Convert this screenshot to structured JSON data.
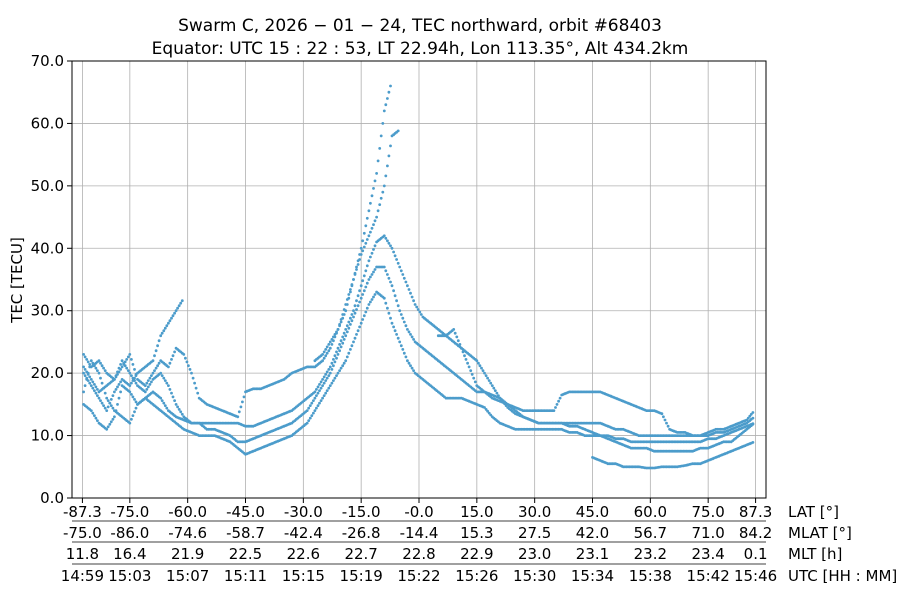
{
  "chart_data": {
    "type": "scatter",
    "title_line1": "Swarm C,  2026 − 01 − 24,  TEC northward,  orbit #68403",
    "title_line2": "Equator:  UTC 15 : 22 : 53,  LT 22.94h,  Lon 113.35°,  Alt 434.2km",
    "ylabel": "TEC [TECU]",
    "ylim": [
      0,
      70
    ],
    "yticks": [
      "0.0",
      "10.0",
      "20.0",
      "30.0",
      "40.0",
      "50.0",
      "60.0",
      "70.0"
    ],
    "xlim": [
      -90,
      90
    ],
    "grid": true,
    "series_color": "#4c9ccb",
    "lat_ticks": [
      "-87.3",
      "-75.0",
      "-60.0",
      "-45.0",
      "-30.0",
      "-15.0",
      "-0.0",
      "15.0",
      "30.0",
      "45.0",
      "60.0",
      "75.0",
      "87.3"
    ],
    "mlat_ticks": [
      "-75.0",
      "-86.0",
      "-74.6",
      "-58.7",
      "-42.4",
      "-26.8",
      "-14.4",
      "15.3",
      "27.5",
      "42.0",
      "56.7",
      "71.0",
      "84.2"
    ],
    "mlt_ticks": [
      "11.8",
      "16.4",
      "21.9",
      "22.5",
      "22.6",
      "22.7",
      "22.8",
      "22.9",
      "23.0",
      "23.1",
      "23.2",
      "23.4",
      "0.1"
    ],
    "utc_ticks": [
      "14:59",
      "15:03",
      "15:07",
      "15:11",
      "15:15",
      "15:19",
      "15:22",
      "15:26",
      "15:30",
      "15:34",
      "15:38",
      "15:42",
      "15:46"
    ],
    "row_labels": [
      "LAT [°]",
      "MLAT [°]",
      "MLT [h]",
      "UTC [HH : MM]"
    ],
    "tick_positions": [
      -87.3,
      -75,
      -60,
      -45,
      -30,
      -15,
      0,
      15,
      30,
      45,
      60,
      75,
      87.3
    ],
    "series": [
      {
        "x": [
          -87,
          -85,
          -83,
          -81,
          -79,
          -77,
          -75,
          -73,
          -71,
          -69,
          -67,
          -65,
          -63,
          -61,
          -59,
          -57,
          -55,
          -53,
          -51,
          -49,
          -47,
          -45,
          -43,
          -41,
          -39,
          -37,
          -35,
          -33,
          -31,
          -29,
          -27,
          -25,
          -23,
          -21,
          -19,
          -17,
          -15,
          -13,
          -11,
          -9,
          -7,
          -5,
          -3,
          -1,
          1,
          3,
          5,
          7,
          9,
          11,
          13,
          15,
          17,
          19,
          21,
          23,
          25,
          27,
          29,
          31,
          33,
          35,
          37,
          39,
          41,
          43,
          45,
          47,
          49,
          51,
          53,
          55,
          57,
          59,
          61,
          63,
          65,
          67,
          69,
          71,
          73,
          75,
          77,
          79,
          81,
          83,
          85,
          87
        ],
        "y": [
          17,
          22,
          20,
          16,
          14,
          13,
          12,
          15,
          16,
          15,
          14,
          13,
          12,
          11,
          10.5,
          10,
          10,
          10,
          9.5,
          9,
          8,
          7,
          7.5,
          8,
          8.5,
          9,
          9.5,
          10,
          11,
          12,
          14,
          16,
          18,
          20,
          22,
          25,
          28,
          31,
          33,
          32,
          28,
          25,
          22,
          20,
          19,
          18,
          17,
          16,
          16,
          16,
          15.5,
          15,
          14.5,
          13,
          12,
          11.5,
          11,
          11,
          11,
          11,
          11,
          11,
          11,
          10.5,
          10.5,
          10,
          10,
          10,
          9.5,
          9,
          8.5,
          8,
          8,
          8,
          7.5,
          7.5,
          7.5,
          7.5,
          7.5,
          7.5,
          8,
          8,
          8.5,
          9,
          9,
          10,
          11,
          12
        ]
      },
      {
        "x": [
          -87,
          -85,
          -83,
          -81,
          -79,
          -77,
          -75,
          -73,
          -71,
          -69,
          -67,
          -65,
          -63,
          -61,
          -59,
          -57,
          -55,
          -53,
          -51,
          -49,
          -47,
          -45,
          -43,
          -41,
          -39,
          -37,
          -35,
          -33,
          -31,
          -29,
          -27,
          -25,
          -23,
          -21,
          -19,
          -17,
          -15,
          -13,
          -11,
          -9,
          -7,
          -5,
          -3,
          -1,
          1,
          3,
          5,
          7,
          9,
          11,
          13,
          15,
          17,
          19,
          21,
          23,
          25,
          27,
          29,
          31,
          33,
          35,
          37,
          39,
          41,
          43,
          45,
          47,
          49,
          51,
          53,
          55,
          57,
          59,
          61,
          63,
          65,
          67,
          69,
          71,
          73,
          75,
          77,
          79,
          81,
          83,
          85,
          87
        ],
        "y": [
          21,
          19,
          17,
          18,
          19,
          22,
          20,
          18,
          17,
          19,
          20,
          18,
          15,
          13,
          12,
          12,
          11,
          11,
          10.5,
          10,
          9,
          9,
          9.5,
          10,
          10.5,
          11,
          11.5,
          12,
          13,
          14,
          16,
          18,
          20,
          23,
          26,
          29,
          32,
          35,
          37,
          37,
          34,
          30,
          27,
          25,
          24,
          23,
          22,
          21,
          20,
          19,
          18,
          17,
          17,
          16.5,
          16,
          15,
          14,
          13,
          12.5,
          12,
          12,
          12,
          12,
          11.5,
          11.5,
          11,
          10.5,
          10,
          10,
          9.5,
          9.5,
          9,
          9,
          9,
          9,
          9,
          9,
          9,
          9,
          9,
          9,
          9.5,
          9.5,
          10,
          10.5,
          11,
          11.5,
          12
        ]
      },
      {
        "x": [
          -87,
          -85,
          -83,
          -81,
          -79,
          -77,
          -75,
          -73,
          -71,
          -69,
          -67,
          -65,
          -63,
          -61,
          -59,
          -57,
          -55,
          -53,
          -51,
          -49,
          -47,
          -45,
          -43,
          -41,
          -39,
          -37,
          -35,
          -33,
          -31,
          -29,
          -27,
          -25,
          -23,
          -21,
          -19,
          -17,
          -15,
          -13,
          -11,
          -9,
          -7,
          -5,
          -3,
          -1,
          1,
          3,
          5,
          7,
          9,
          11,
          13,
          15,
          17,
          19,
          21,
          23,
          25,
          27,
          29,
          31,
          33,
          35,
          37,
          39,
          41,
          43,
          45,
          47,
          49,
          51,
          53,
          55,
          57,
          59,
          61,
          63,
          65,
          67,
          69,
          71,
          73,
          75,
          77,
          79,
          81,
          83,
          85,
          87
        ],
        "y": [
          15,
          14,
          12,
          11,
          13,
          18,
          17,
          15,
          16,
          17,
          16,
          14,
          13,
          12.5,
          12,
          12,
          12,
          12,
          12,
          12,
          12,
          11.5,
          11.5,
          12,
          12.5,
          13,
          13.5,
          14,
          15,
          16,
          17,
          19,
          21,
          24,
          27,
          30,
          34,
          38,
          41,
          42,
          40,
          37,
          34,
          31,
          29,
          28,
          27,
          26,
          25,
          24,
          23,
          22,
          20,
          18,
          16,
          14.5,
          13.5,
          13,
          12.5,
          12,
          12,
          12,
          12,
          12,
          12,
          12,
          12,
          12,
          11.5,
          11,
          11,
          10.5,
          10,
          10,
          10,
          10,
          10,
          10,
          10,
          10,
          10,
          10,
          10.5,
          10.5,
          11,
          11.5,
          12,
          13
        ]
      },
      {
        "x": [
          -87,
          -85,
          -83,
          -81,
          -79,
          -77,
          -75,
          -73,
          -71,
          -69,
          -67,
          -65,
          -63,
          -61,
          -59,
          -57,
          -55,
          -53,
          -51,
          -49,
          -47,
          -45,
          -43,
          -41,
          -39,
          -37,
          -35,
          -33,
          -31,
          -29,
          -27,
          -25,
          -23,
          -21,
          -19,
          -17,
          -15,
          -13,
          -11,
          -9,
          -7,
          -5,
          -3,
          -1,
          1,
          3,
          5,
          7,
          9,
          11,
          13,
          15,
          17,
          19,
          21,
          23,
          25,
          27,
          29,
          31,
          33,
          35,
          37,
          39,
          41,
          43,
          45,
          47,
          49,
          51,
          53,
          55,
          57,
          59,
          61,
          63,
          65,
          67,
          69,
          71,
          73,
          75,
          77,
          79,
          81,
          83,
          85,
          87
        ],
        "y": [
          23,
          21,
          22,
          20,
          19,
          21,
          23,
          19,
          18,
          20,
          22,
          21,
          24,
          23,
          20,
          16,
          15,
          14.5,
          14,
          13.5,
          13,
          17,
          17.5,
          17.5,
          18,
          18.5,
          19,
          20,
          20.5,
          21,
          21,
          22,
          24,
          27,
          31,
          35,
          39,
          42,
          45,
          50,
          58,
          59,
          null,
          null,
          29.5,
          null,
          26,
          26,
          27,
          24,
          21,
          18,
          17,
          16,
          15.5,
          15,
          14.5,
          14,
          14,
          14,
          14,
          14,
          16.5,
          17,
          17,
          17,
          17,
          17,
          16.5,
          16,
          15.5,
          15,
          14.5,
          14,
          14,
          13.5,
          11,
          10.5,
          10.5,
          10,
          10,
          10.5,
          11,
          11,
          11.5,
          12,
          12.5,
          14
        ]
      },
      {
        "x": [
          -87,
          -85,
          -83,
          -81,
          -79,
          -77,
          -75,
          -73,
          -71,
          -69,
          -67,
          -65,
          -63,
          -61,
          -59,
          -57,
          -55,
          -53,
          -51,
          -49,
          -47,
          -45,
          -43,
          -41,
          -39,
          -37,
          -35,
          -33,
          -31,
          -29,
          -27,
          -25,
          -23,
          -21,
          -19,
          -17,
          -15,
          -13,
          -11,
          -9,
          -7,
          -5,
          -3,
          -1,
          1,
          3,
          5,
          7,
          9,
          11,
          13,
          15,
          17,
          19,
          21,
          23,
          25,
          27,
          29,
          31,
          33,
          35,
          37,
          39,
          41,
          43,
          45,
          47,
          49,
          51,
          53,
          55,
          57,
          59,
          61,
          63,
          65,
          67,
          69,
          71,
          73,
          75,
          77,
          79,
          81,
          83,
          85,
          87
        ],
        "y": [
          20,
          18,
          16,
          14,
          17,
          19,
          18,
          20,
          21,
          22,
          26,
          28,
          30,
          32,
          null,
          null,
          null,
          null,
          null,
          null,
          null,
          null,
          null,
          null,
          null,
          null,
          null,
          null,
          null,
          null,
          22,
          23,
          25,
          27,
          30,
          35,
          40,
          46,
          52,
          62,
          67,
          null,
          null,
          null,
          null,
          null,
          null,
          null,
          null,
          null,
          null,
          null,
          null,
          null,
          null,
          null,
          null,
          null,
          null,
          null,
          null,
          null,
          null,
          null,
          null,
          null,
          6.5,
          6,
          5.5,
          5.5,
          5,
          5,
          5,
          4.8,
          4.8,
          5,
          5,
          5,
          5.2,
          5.5,
          5.5,
          6,
          6.5,
          7,
          7.5,
          8,
          8.5,
          9
        ]
      }
    ]
  }
}
